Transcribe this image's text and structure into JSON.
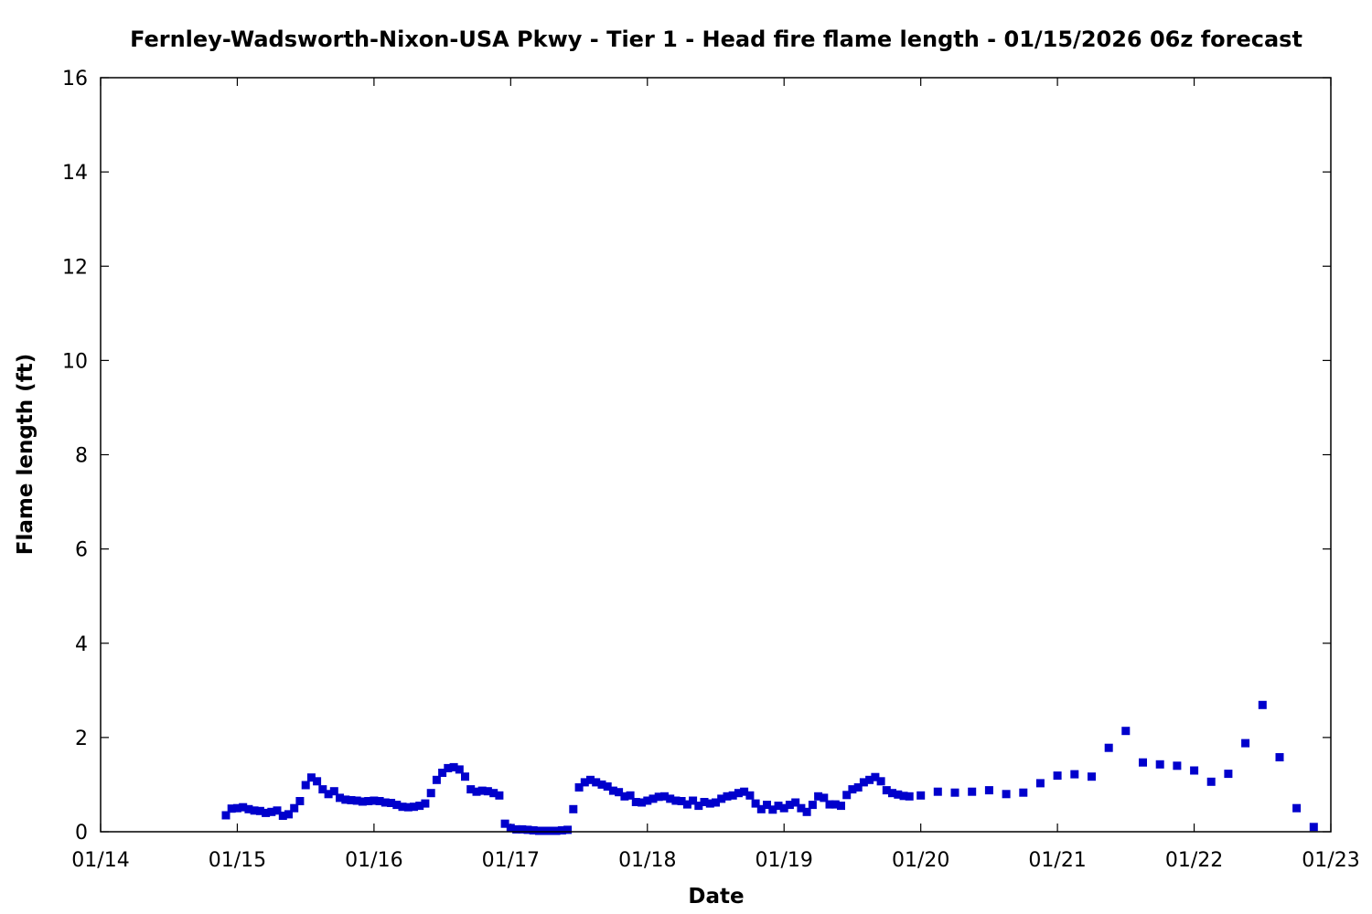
{
  "chart_data": {
    "type": "scatter",
    "title": "Fernley-Wadsworth-Nixon-USA Pkwy - Tier 1 - Head fire flame length - 01/15/2026 06z forecast",
    "xlabel": "Date",
    "ylabel": "Flame length (ft)",
    "x_tick_labels": [
      "01/14",
      "01/15",
      "01/16",
      "01/17",
      "01/18",
      "01/19",
      "01/20",
      "01/21",
      "01/22",
      "01/23"
    ],
    "y_tick_labels": [
      "0",
      "2",
      "4",
      "6",
      "8",
      "10",
      "12",
      "14",
      "16"
    ],
    "ylim": [
      0,
      16
    ],
    "x_range_days": [
      0,
      9
    ],
    "grid": false,
    "legend": "none",
    "marker": "square",
    "series": [
      {
        "color": "#0000cc",
        "points": [
          [
            "01/14 22:00",
            0.35
          ],
          [
            "01/14 23:00",
            0.49
          ],
          [
            "01/15 00:00",
            0.5
          ],
          [
            "01/15 01:00",
            0.52
          ],
          [
            "01/15 02:00",
            0.48
          ],
          [
            "01/15 03:00",
            0.45
          ],
          [
            "01/15 04:00",
            0.44
          ],
          [
            "01/15 05:00",
            0.4
          ],
          [
            "01/15 06:00",
            0.42
          ],
          [
            "01/15 07:00",
            0.45
          ],
          [
            "01/15 08:00",
            0.34
          ],
          [
            "01/15 09:00",
            0.37
          ],
          [
            "01/15 10:00",
            0.5
          ],
          [
            "01/15 11:00",
            0.65
          ],
          [
            "01/15 12:00",
            0.99
          ],
          [
            "01/15 13:00",
            1.15
          ],
          [
            "01/15 14:00",
            1.07
          ],
          [
            "01/15 15:00",
            0.9
          ],
          [
            "01/15 16:00",
            0.8
          ],
          [
            "01/15 17:00",
            0.86
          ],
          [
            "01/15 18:00",
            0.72
          ],
          [
            "01/15 19:00",
            0.68
          ],
          [
            "01/15 20:00",
            0.67
          ],
          [
            "01/15 21:00",
            0.66
          ],
          [
            "01/15 22:00",
            0.64
          ],
          [
            "01/15 23:00",
            0.65
          ],
          [
            "01/16 00:00",
            0.66
          ],
          [
            "01/16 01:00",
            0.65
          ],
          [
            "01/16 02:00",
            0.62
          ],
          [
            "01/16 03:00",
            0.61
          ],
          [
            "01/16 04:00",
            0.57
          ],
          [
            "01/16 05:00",
            0.53
          ],
          [
            "01/16 06:00",
            0.52
          ],
          [
            "01/16 07:00",
            0.53
          ],
          [
            "01/16 08:00",
            0.55
          ],
          [
            "01/16 09:00",
            0.6
          ],
          [
            "01/16 10:00",
            0.82
          ],
          [
            "01/16 11:00",
            1.1
          ],
          [
            "01/16 12:00",
            1.25
          ],
          [
            "01/16 13:00",
            1.35
          ],
          [
            "01/16 14:00",
            1.37
          ],
          [
            "01/16 15:00",
            1.32
          ],
          [
            "01/16 16:00",
            1.17
          ],
          [
            "01/16 17:00",
            0.9
          ],
          [
            "01/16 18:00",
            0.85
          ],
          [
            "01/16 19:00",
            0.87
          ],
          [
            "01/16 20:00",
            0.86
          ],
          [
            "01/16 21:00",
            0.82
          ],
          [
            "01/16 22:00",
            0.77
          ],
          [
            "01/16 23:00",
            0.17
          ],
          [
            "01/17 00:00",
            0.08
          ],
          [
            "01/17 01:00",
            0.05
          ],
          [
            "01/17 02:00",
            0.05
          ],
          [
            "01/17 03:00",
            0.04
          ],
          [
            "01/17 04:00",
            0.03
          ],
          [
            "01/17 05:00",
            0.02
          ],
          [
            "01/17 06:00",
            0.02
          ],
          [
            "01/17 07:00",
            0.02
          ],
          [
            "01/17 08:00",
            0.02
          ],
          [
            "01/17 09:00",
            0.03
          ],
          [
            "01/17 10:00",
            0.04
          ],
          [
            "01/17 11:00",
            0.48
          ],
          [
            "01/17 12:00",
            0.94
          ],
          [
            "01/17 13:00",
            1.05
          ],
          [
            "01/17 14:00",
            1.1
          ],
          [
            "01/17 15:00",
            1.05
          ],
          [
            "01/17 16:00",
            1.0
          ],
          [
            "01/17 17:00",
            0.96
          ],
          [
            "01/17 18:00",
            0.87
          ],
          [
            "01/17 19:00",
            0.84
          ],
          [
            "01/17 20:00",
            0.75
          ],
          [
            "01/17 21:00",
            0.77
          ],
          [
            "01/17 22:00",
            0.63
          ],
          [
            "01/17 23:00",
            0.62
          ],
          [
            "01/18 00:00",
            0.66
          ],
          [
            "01/18 01:00",
            0.7
          ],
          [
            "01/18 02:00",
            0.74
          ],
          [
            "01/18 03:00",
            0.75
          ],
          [
            "01/18 04:00",
            0.7
          ],
          [
            "01/18 05:00",
            0.66
          ],
          [
            "01/18 06:00",
            0.65
          ],
          [
            "01/18 07:00",
            0.58
          ],
          [
            "01/18 08:00",
            0.66
          ],
          [
            "01/18 09:00",
            0.55
          ],
          [
            "01/18 10:00",
            0.63
          ],
          [
            "01/18 11:00",
            0.6
          ],
          [
            "01/18 12:00",
            0.62
          ],
          [
            "01/18 13:00",
            0.7
          ],
          [
            "01/18 14:00",
            0.75
          ],
          [
            "01/18 15:00",
            0.77
          ],
          [
            "01/18 16:00",
            0.82
          ],
          [
            "01/18 17:00",
            0.85
          ],
          [
            "01/18 18:00",
            0.77
          ],
          [
            "01/18 19:00",
            0.6
          ],
          [
            "01/18 20:00",
            0.48
          ],
          [
            "01/18 21:00",
            0.57
          ],
          [
            "01/18 22:00",
            0.47
          ],
          [
            "01/18 23:00",
            0.55
          ],
          [
            "01/19 00:00",
            0.5
          ],
          [
            "01/19 01:00",
            0.57
          ],
          [
            "01/19 02:00",
            0.62
          ],
          [
            "01/19 03:00",
            0.5
          ],
          [
            "01/19 04:00",
            0.42
          ],
          [
            "01/19 05:00",
            0.57
          ],
          [
            "01/19 06:00",
            0.75
          ],
          [
            "01/19 07:00",
            0.72
          ],
          [
            "01/19 08:00",
            0.58
          ],
          [
            "01/19 09:00",
            0.58
          ],
          [
            "01/19 10:00",
            0.55
          ],
          [
            "01/19 11:00",
            0.78
          ],
          [
            "01/19 12:00",
            0.9
          ],
          [
            "01/19 13:00",
            0.94
          ],
          [
            "01/19 14:00",
            1.05
          ],
          [
            "01/19 15:00",
            1.1
          ],
          [
            "01/19 16:00",
            1.16
          ],
          [
            "01/19 17:00",
            1.07
          ],
          [
            "01/19 18:00",
            0.88
          ],
          [
            "01/19 19:00",
            0.82
          ],
          [
            "01/19 20:00",
            0.79
          ],
          [
            "01/19 21:00",
            0.76
          ],
          [
            "01/19 22:00",
            0.75
          ],
          [
            "01/20 00:00",
            0.77
          ],
          [
            "01/20 03:00",
            0.85
          ],
          [
            "01/20 06:00",
            0.83
          ],
          [
            "01/20 09:00",
            0.85
          ],
          [
            "01/20 12:00",
            0.88
          ],
          [
            "01/20 15:00",
            0.8
          ],
          [
            "01/20 18:00",
            0.83
          ],
          [
            "01/20 21:00",
            1.03
          ],
          [
            "01/21 00:00",
            1.19
          ],
          [
            "01/21 03:00",
            1.22
          ],
          [
            "01/21 06:00",
            1.17
          ],
          [
            "01/21 09:00",
            1.78
          ],
          [
            "01/21 12:00",
            2.14
          ],
          [
            "01/21 15:00",
            1.47
          ],
          [
            "01/21 18:00",
            1.43
          ],
          [
            "01/21 21:00",
            1.4
          ],
          [
            "01/22 00:00",
            1.3
          ],
          [
            "01/22 03:00",
            1.06
          ],
          [
            "01/22 06:00",
            1.23
          ],
          [
            "01/22 09:00",
            1.88
          ],
          [
            "01/22 12:00",
            2.69
          ],
          [
            "01/22 15:00",
            1.58
          ],
          [
            "01/22 18:00",
            0.5
          ],
          [
            "01/22 21:00",
            0.1
          ]
        ]
      }
    ]
  }
}
